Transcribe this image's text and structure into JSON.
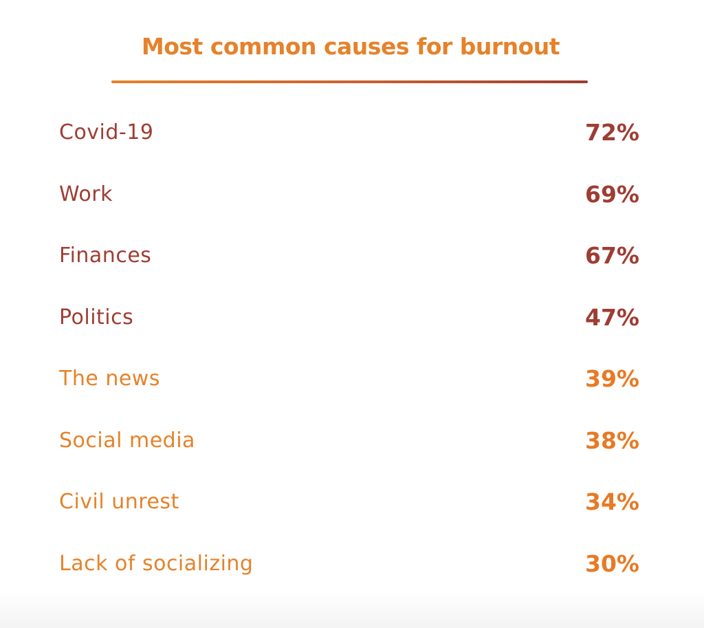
{
  "chart_data": {
    "type": "table",
    "title": "Most common causes for burnout",
    "categories": [
      "Covid-19",
      "Work",
      "Finances",
      "Politics",
      "The news",
      "Social media",
      "Civil unrest",
      "Lack of socializing"
    ],
    "value_labels": [
      "72%",
      "69%",
      "67%",
      "47%",
      "39%",
      "38%",
      "34%",
      "30%"
    ],
    "values": [
      72,
      69,
      67,
      47,
      39,
      38,
      34,
      30
    ],
    "colors": {
      "title": "#e5822a",
      "rule_start": "#e5822a",
      "rule_end": "#9c3b30",
      "dark_label": "#9e3d33",
      "dark_value": "#9e3d33",
      "light_label": "#e5822a",
      "light_value": "#e77a25"
    },
    "dark_rows": 4
  }
}
